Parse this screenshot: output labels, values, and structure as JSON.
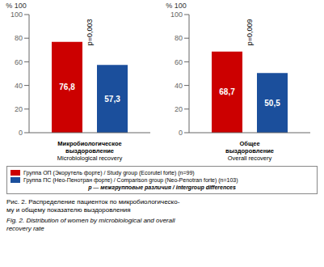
{
  "chart_data": [
    {
      "type": "bar",
      "title": "Микробиологическое\nвыздоровление",
      "subtitle": "Microbiological recovery",
      "ylabel": "% 100",
      "categories": [
        null
      ],
      "series": [
        {
          "name": "Группа ОП (Экорутель форте) / Study group (Ecorutel forte) (n=99)",
          "color": "#cc0000",
          "values": [
            76.8
          ],
          "value_labels": [
            "76,8"
          ]
        },
        {
          "name": "Группа ПС (Нео-Пенотран форте) / Comparison group (Neo-Penotran forte) (n=103)",
          "color": "#1b4f9c",
          "values": [
            57.3
          ],
          "value_labels": [
            "57,3"
          ]
        }
      ],
      "ylim": [
        0,
        100
      ],
      "yticks": [
        0,
        20,
        40,
        60,
        80,
        100
      ],
      "data_labels": true,
      "annotations": [
        "p=0,003"
      ]
    },
    {
      "type": "bar",
      "title": "Общее\nвыздоровление",
      "subtitle": "Overall recovery",
      "ylabel": "% 100",
      "categories": [
        null
      ],
      "series": [
        {
          "name": "Группа ОП (Экорутель форте) / Study group (Ecorutel forte) (n=99)",
          "color": "#cc0000",
          "values": [
            68.7
          ],
          "value_labels": [
            "68,7"
          ]
        },
        {
          "name": "Группа ПС (Нео-Пенотран форте) / Comparison group (Neo-Penotran forte) (n=103)",
          "color": "#1b4f9c",
          "values": [
            50.5
          ],
          "value_labels": [
            "50,5"
          ]
        }
      ],
      "ylim": [
        0,
        100
      ],
      "yticks": [
        0,
        20,
        40,
        60,
        80,
        100
      ],
      "data_labels": true,
      "annotations": [
        "p=0,009"
      ]
    }
  ],
  "annotations": [
    "р — межгрупповые различия / intergroup differences",
    "Рис. 2. Распределение пациенток по микробиологическо-\nму и общему показателю выздоровления",
    "Fig. 2. Distribution of women by microbiological and overall\nrecovery rate"
  ]
}
